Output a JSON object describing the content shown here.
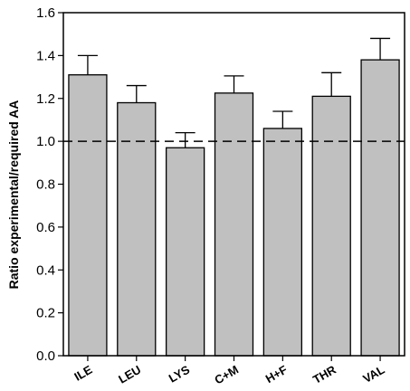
{
  "chart_data": {
    "type": "bar",
    "categories": [
      "ILE",
      "LEU",
      "LYS",
      "C+M",
      "H+F",
      "THR",
      "VAL"
    ],
    "values": [
      1.31,
      1.18,
      0.97,
      1.225,
      1.06,
      1.21,
      1.38
    ],
    "error_upper": [
      0.09,
      0.08,
      0.07,
      0.08,
      0.08,
      0.11,
      0.1
    ],
    "ylabel": "Ratio experimental/required AA",
    "xlabel": "",
    "ylim": [
      0.0,
      1.6
    ],
    "yticks": [
      "0.0",
      "0.2",
      "0.4",
      "0.6",
      "0.8",
      "1.0",
      "1.2",
      "1.4",
      "1.6"
    ],
    "reference_line": 1.0,
    "bar_color": "#c0c0c0",
    "grid": false
  }
}
